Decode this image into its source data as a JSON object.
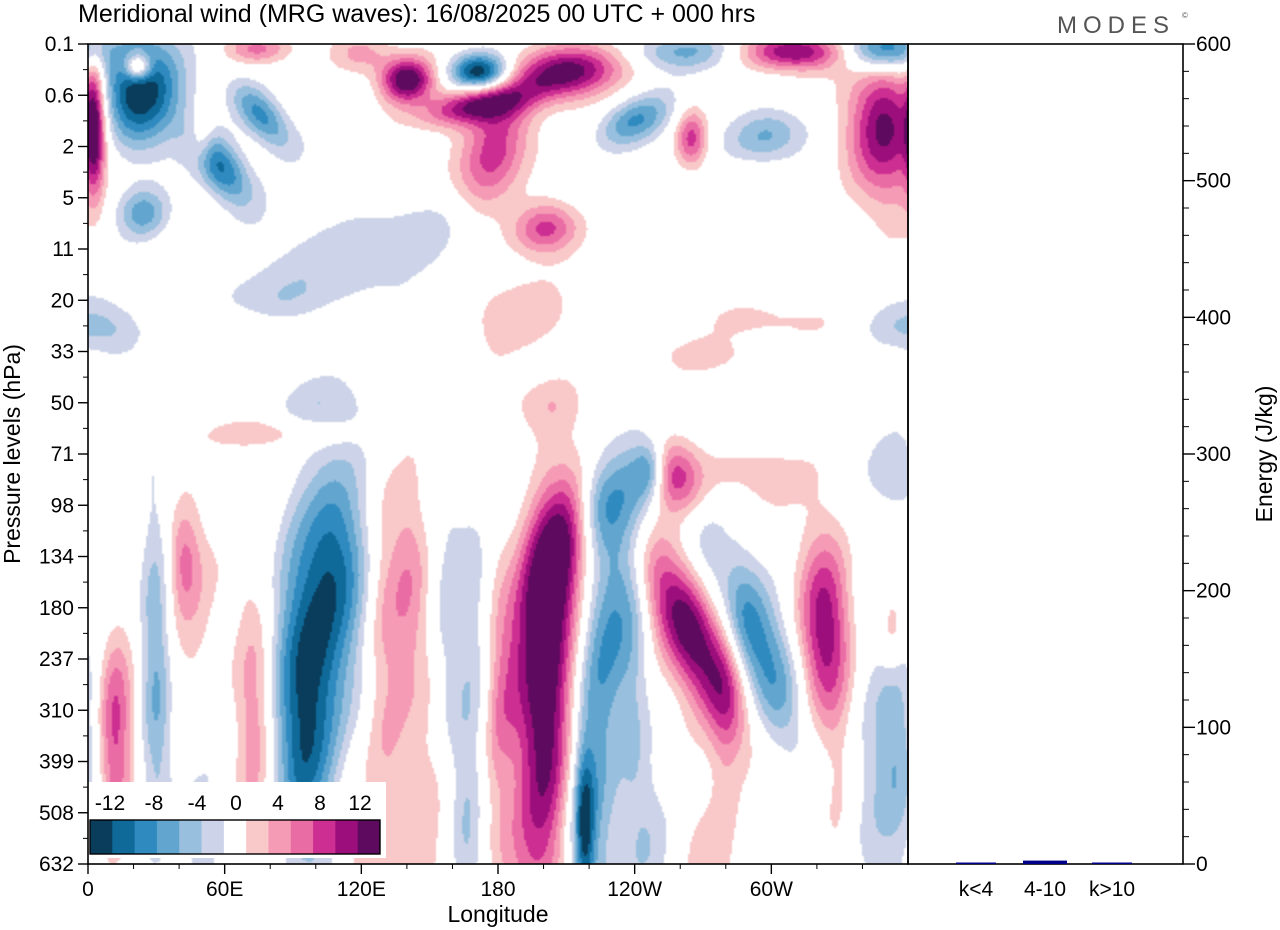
{
  "title": "Meridional wind (MRG waves):  16/08/2025  00 UTC  + 000 hrs",
  "logo": "MODES",
  "logo_mark": "©",
  "chart_data": [
    {
      "type": "heatmap",
      "title": "Meridional wind (MRG waves)",
      "xlabel": "Longitude",
      "ylabel": "Pressure levels (hPa)",
      "x_range_deg": [
        0,
        360
      ],
      "x_ticks": [
        {
          "deg": 0,
          "label": "0"
        },
        {
          "deg": 60,
          "label": "60E"
        },
        {
          "deg": 120,
          "label": "120E"
        },
        {
          "deg": 180,
          "label": "180"
        },
        {
          "deg": 240,
          "label": "120W"
        },
        {
          "deg": 300,
          "label": "60W"
        }
      ],
      "y_levels": [
        "0.1",
        "0.6",
        "2",
        "5",
        "11",
        "20",
        "33",
        "50",
        "71",
        "98",
        "134",
        "180",
        "237",
        "310",
        "399",
        "508",
        "632"
      ],
      "colorbar": {
        "labels": [
          "-12",
          "-8",
          "-4",
          "0",
          "4",
          "8",
          "12"
        ],
        "bounds": [
          -14,
          -12,
          -10,
          -8,
          -6,
          -4,
          -2,
          2,
          4,
          6,
          8,
          10,
          12,
          14
        ],
        "colors": [
          "#0a3d5c",
          "#0f6a9a",
          "#2f8ac0",
          "#62a6d0",
          "#98bfdd",
          "#cdd3e8",
          "#ffffff",
          "#f9c8c8",
          "#f59bb5",
          "#ea6ca4",
          "#cc2e91",
          "#9c0e7c",
          "#5e0a5e"
        ]
      },
      "features": [
        {
          "lon": 22,
          "level": 0.9,
          "value": -14,
          "sx": 13,
          "sy": 0.75,
          "rot": 0
        },
        {
          "lon": 22,
          "level": 0.45,
          "value": 12,
          "sx": 4,
          "sy": 0.18,
          "rot": 0
        },
        {
          "lon": 58,
          "level": 2.4,
          "value": -11,
          "sx": 7,
          "sy": 0.6,
          "rot": -35
        },
        {
          "lon": 76,
          "level": 1.4,
          "value": -9,
          "sx": 6,
          "sy": 0.55,
          "rot": -40
        },
        {
          "lon": 24,
          "level": 3.3,
          "value": -7,
          "sx": 8,
          "sy": 0.35,
          "rot": -20
        },
        {
          "lon": 3,
          "level": 1.6,
          "value": 11,
          "sx": 3,
          "sy": 0.9,
          "rot": 0
        },
        {
          "lon": 50,
          "level": 1.9,
          "value": 5,
          "sx": 4,
          "sy": 0.35,
          "rot": 0
        },
        {
          "lon": 120,
          "level": 0.2,
          "value": 5,
          "sx": 10,
          "sy": 0.3,
          "rot": 0
        },
        {
          "lon": 140,
          "level": 0.7,
          "value": 14,
          "sx": 8,
          "sy": 0.3,
          "rot": -10
        },
        {
          "lon": 172,
          "level": 0.55,
          "value": -14,
          "sx": 9,
          "sy": 0.25,
          "rot": 0
        },
        {
          "lon": 210,
          "level": 0.55,
          "value": 14,
          "sx": 16,
          "sy": 0.35,
          "rot": -10
        },
        {
          "lon": 170,
          "level": 1.2,
          "value": 12,
          "sx": 16,
          "sy": 0.25,
          "rot": -10
        },
        {
          "lon": 178,
          "level": 2.2,
          "value": 10,
          "sx": 10,
          "sy": 0.9,
          "rot": 20
        },
        {
          "lon": 201,
          "level": 3.6,
          "value": 9,
          "sx": 10,
          "sy": 0.35,
          "rot": -10
        },
        {
          "lon": 240,
          "level": 1.5,
          "value": -8,
          "sx": 12,
          "sy": 0.3,
          "rot": -25
        },
        {
          "lon": 265,
          "level": 1.85,
          "value": 9,
          "sx": 5,
          "sy": 0.4,
          "rot": 0
        },
        {
          "lon": 298,
          "level": 1.8,
          "value": -7,
          "sx": 12,
          "sy": 0.35,
          "rot": -15
        },
        {
          "lon": 350,
          "level": 1.6,
          "value": 13,
          "sx": 12,
          "sy": 1.0,
          "rot": 0
        },
        {
          "lon": 348,
          "level": 0.1,
          "value": -12,
          "sx": 12,
          "sy": 0.3,
          "rot": 0
        },
        {
          "lon": 310,
          "level": 0.15,
          "value": 12,
          "sx": 16,
          "sy": 0.25,
          "rot": 0
        },
        {
          "lon": 260,
          "level": 0.15,
          "value": -6,
          "sx": 18,
          "sy": 0.25,
          "rot": 0
        },
        {
          "lon": 75,
          "level": 0.1,
          "value": 6,
          "sx": 10,
          "sy": 0.2,
          "rot": 0
        },
        {
          "lon": 130,
          "level": 3.8,
          "value": -3.5,
          "sx": 40,
          "sy": 0.5,
          "rot": -15
        },
        {
          "lon": 90,
          "level": 5.0,
          "value": -3,
          "sx": 30,
          "sy": 0.4,
          "rot": -10
        },
        {
          "lon": 190,
          "level": 5.3,
          "value": 3,
          "sx": 22,
          "sy": 0.55,
          "rot": 0
        },
        {
          "lon": 300,
          "level": 5.4,
          "value": 3,
          "sx": 20,
          "sy": 0.3,
          "rot": 0
        },
        {
          "lon": 355,
          "level": 5.5,
          "value": -3.5,
          "sx": 12,
          "sy": 0.35,
          "rot": 0
        },
        {
          "lon": 12,
          "level": 5.6,
          "value": -3.5,
          "sx": 9,
          "sy": 0.45,
          "rot": 0
        },
        {
          "lon": 70,
          "level": 5.6,
          "value": 3,
          "sx": 12,
          "sy": 0.3,
          "rot": 0
        },
        {
          "lon": 270,
          "level": 6.1,
          "value": 3,
          "sx": 18,
          "sy": 0.25,
          "rot": 0
        },
        {
          "lon": 100,
          "level": 7.0,
          "value": -3,
          "sx": 14,
          "sy": 0.4,
          "rot": 0
        },
        {
          "lon": 200,
          "level": 7.0,
          "value": 3,
          "sx": 12,
          "sy": 0.4,
          "rot": 0
        },
        {
          "lon": 80,
          "level": 7.6,
          "value": 3,
          "sx": 28,
          "sy": 0.2,
          "rot": 0
        },
        {
          "lon": 295,
          "level": 8.4,
          "value": 3,
          "sx": 14,
          "sy": 0.45,
          "rot": 0
        },
        {
          "lon": 240,
          "level": 8.4,
          "value": -5,
          "sx": 10,
          "sy": 0.6,
          "rot": -20
        },
        {
          "lon": 356,
          "level": 8.4,
          "value": -3,
          "sx": 10,
          "sy": 0.6,
          "rot": 0
        },
        {
          "lon": 247,
          "level": 8.3,
          "value": -8,
          "sx": 5,
          "sy": 0.4,
          "rot": 0
        },
        {
          "lon": 255,
          "level": 8.4,
          "value": 12,
          "sx": 10,
          "sy": 0.55,
          "rot": -25
        },
        {
          "lon": 225,
          "level": 9.0,
          "value": -7,
          "sx": 8,
          "sy": 0.6,
          "rot": 0
        },
        {
          "lon": 228,
          "level": 11.5,
          "value": -8,
          "sx": 9,
          "sy": 2.6,
          "rot": 10
        },
        {
          "lon": 206,
          "level": 10.0,
          "value": 12,
          "sx": 8,
          "sy": 1.2,
          "rot": 10
        },
        {
          "lon": 202,
          "level": 13.5,
          "value": 15,
          "sx": 10,
          "sy": 2.3,
          "rot": 0
        },
        {
          "lon": 188,
          "level": 11.5,
          "value": 3,
          "sx": 6,
          "sy": 2.8,
          "rot": 10
        },
        {
          "lon": 265,
          "level": 11.5,
          "value": 14,
          "sx": 10,
          "sy": 1.5,
          "rot": -25
        },
        {
          "lon": 292,
          "level": 11.6,
          "value": -10,
          "sx": 10,
          "sy": 1.5,
          "rot": -20
        },
        {
          "lon": 323,
          "level": 11.4,
          "value": 12,
          "sx": 8,
          "sy": 1.3,
          "rot": 0
        },
        {
          "lon": 353,
          "level": 11.5,
          "value": 4,
          "sx": 4,
          "sy": 0.6,
          "rot": 0
        },
        {
          "lon": 355,
          "level": 13.5,
          "value": -4,
          "sx": 7,
          "sy": 1.5,
          "rot": 0
        },
        {
          "lon": 345,
          "level": 14.0,
          "value": -3,
          "sx": 14,
          "sy": 2.0,
          "rot": 0
        },
        {
          "lon": 100,
          "level": 11.6,
          "value": -12,
          "sx": 14,
          "sy": 2.1,
          "rot": 5
        },
        {
          "lon": 110,
          "level": 9.9,
          "value": -3,
          "sx": 8,
          "sy": 1.0,
          "rot": 0
        },
        {
          "lon": 95,
          "level": 14.2,
          "value": -6,
          "sx": 8,
          "sy": 1.4,
          "rot": 0
        },
        {
          "lon": 75,
          "level": 12.0,
          "value": 3,
          "sx": 8,
          "sy": 2.2,
          "rot": 0
        },
        {
          "lon": 140,
          "level": 10.6,
          "value": 5,
          "sx": 7,
          "sy": 1.6,
          "rot": 0
        },
        {
          "lon": 128,
          "level": 12.0,
          "value": 3,
          "sx": 5,
          "sy": 3.0,
          "rot": 0
        },
        {
          "lon": 157,
          "level": 11.0,
          "value": -3,
          "sx": 6,
          "sy": 2.5,
          "rot": 0
        },
        {
          "lon": 170,
          "level": 13.0,
          "value": -3,
          "sx": 6,
          "sy": 3.5,
          "rot": 0
        },
        {
          "lon": 150,
          "level": 14.5,
          "value": 3,
          "sx": 6,
          "sy": 2.5,
          "rot": 0
        },
        {
          "lon": 136,
          "level": 14.8,
          "value": 3,
          "sx": 6,
          "sy": 2.5,
          "rot": 0
        },
        {
          "lon": 30,
          "level": 12.3,
          "value": -7,
          "sx": 5,
          "sy": 2.2,
          "rot": 0
        },
        {
          "lon": 11,
          "level": 12.8,
          "value": 3,
          "sx": 7,
          "sy": 3.0,
          "rot": 0
        },
        {
          "lon": 12,
          "level": 13.4,
          "value": 6,
          "sx": 5,
          "sy": 1.3,
          "rot": 0
        },
        {
          "lon": 42,
          "level": 10.0,
          "value": 5,
          "sx": 5,
          "sy": 0.7,
          "rot": 0
        },
        {
          "lon": 45,
          "level": 11.0,
          "value": 2.5,
          "sx": 9,
          "sy": 1.6,
          "rot": 0
        },
        {
          "lon": 73,
          "level": 13.3,
          "value": 5,
          "sx": 6,
          "sy": 1.5,
          "rot": 0
        },
        {
          "lon": 10,
          "level": 10.2,
          "value": -3,
          "sx": 5,
          "sy": 1.0,
          "rot": 0
        },
        {
          "lon": 180,
          "level": 12.0,
          "value": 3,
          "sx": 5,
          "sy": 2.5,
          "rot": 0
        },
        {
          "lon": 240,
          "level": 13.5,
          "value": -3,
          "sx": 5,
          "sy": 2.5,
          "rot": 0
        },
        {
          "lon": 280,
          "level": 13.5,
          "value": 3,
          "sx": 5,
          "sy": 2.8,
          "rot": 0
        },
        {
          "lon": 330,
          "level": 14.5,
          "value": 3,
          "sx": 6,
          "sy": 2.2,
          "rot": 0
        },
        {
          "lon": 166,
          "level": 15.8,
          "value": -3,
          "sx": 5,
          "sy": 1.8,
          "rot": 0
        },
        {
          "lon": 220,
          "level": 15.5,
          "value": -6,
          "sx": 10,
          "sy": 1.6,
          "rot": 0
        },
        {
          "lon": 218,
          "level": 15.3,
          "value": -9,
          "sx": 3,
          "sy": 1.0,
          "rot": 0
        },
        {
          "lon": 50,
          "level": 15.5,
          "value": -3,
          "sx": 6,
          "sy": 1.0,
          "rot": 0
        },
        {
          "lon": 248,
          "level": 15.5,
          "value": -3,
          "sx": 6,
          "sy": 1.2,
          "rot": 0
        },
        {
          "lon": 270,
          "level": 16.0,
          "value": 3,
          "sx": 7,
          "sy": 1.0,
          "rot": 0
        },
        {
          "lon": 118,
          "level": 15.6,
          "value": 3,
          "sx": 6,
          "sy": 1.5,
          "rot": 0
        },
        {
          "lon": 190,
          "level": 16.1,
          "value": 3,
          "sx": 10,
          "sy": 0.9,
          "rot": 0
        }
      ]
    },
    {
      "type": "bar",
      "title": "",
      "xlabel": "",
      "ylabel": "Energy (J/kg)",
      "categories": [
        "k<4",
        "4-10",
        "k>10"
      ],
      "values": [
        0.5,
        2.5,
        0.5
      ],
      "ylim": [
        0,
        600
      ],
      "y_ticks": [
        0,
        100,
        200,
        300,
        400,
        500,
        600
      ],
      "y_tick_labels": [
        "0",
        "100",
        "200",
        "300",
        "400",
        "500",
        "600"
      ],
      "bar_color": "#00008b"
    }
  ]
}
